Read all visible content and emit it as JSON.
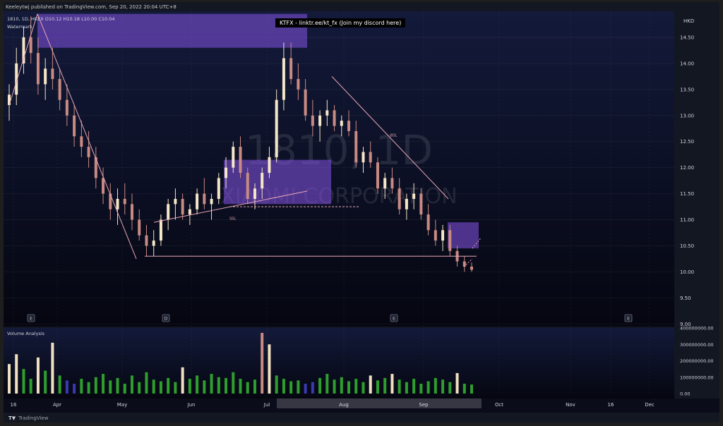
{
  "header": {
    "published": "Keeleytwj published on TradingView.com, Sep 20, 2022 20:04 UTC+8",
    "ohlc": "1810, 1D, HKEX  O10.12  H10.18  L10.00  C10.04",
    "watermark_label": "Watermark",
    "banner": "KTFX - linktr.ee/kt_fx (Join my discord here)",
    "currency": "HKD",
    "volume_title": "Volume Analysis",
    "brand": "TradingView",
    "brand_mark": "T▼"
  },
  "colors": {
    "bg_top": "#131a3a",
    "bg_bottom": "#050610",
    "candle_up": "#f5e6c8",
    "candle_down": "#c98a83",
    "zone": "#7b4fd6",
    "line": "#e8a6b6",
    "vol_green": "#2e9e2e",
    "vol_blue": "#3a3ab0",
    "vol_cream": "#f0e0c0",
    "vol_red": "#c98a83"
  },
  "chart_data": {
    "type": "candlestick",
    "title": "1810, 1D, HKEX",
    "watermark_text": "1810, 1D",
    "watermark_sub": "XIAOMI CORPORATION",
    "ylabel": "HKD",
    "ylim": [
      8.95,
      15.0
    ],
    "price_ticks": [
      "14.50",
      "14.00",
      "13.50",
      "13.00",
      "12.50",
      "12.00",
      "11.50",
      "11.00",
      "10.50",
      "10.00",
      "9.50",
      "9.00"
    ],
    "x_ticks": [
      "16",
      "Apr",
      "May",
      "Jun",
      "Jul",
      "Aug",
      "Sep",
      "Oct",
      "Nov",
      "16",
      "Dec"
    ],
    "volume_ticks": [
      "400000000.00",
      "300000000.00",
      "200000000.00",
      "100000000.00",
      "0.00"
    ],
    "volume_ylim": [
      0,
      400000000
    ],
    "annotation_labels": {
      "ssl_low": "SSL",
      "ssl_high": "SSL",
      "bsl": "BSL"
    },
    "event_markers": [
      "E",
      "D",
      "E",
      "E"
    ],
    "candles": [
      [
        13.2,
        13.6,
        12.9,
        13.4
      ],
      [
        13.4,
        14.3,
        13.2,
        14.0
      ],
      [
        14.0,
        14.7,
        13.8,
        14.5
      ],
      [
        14.5,
        14.9,
        14.0,
        14.2
      ],
      [
        14.2,
        14.5,
        13.4,
        13.6
      ],
      [
        13.6,
        14.1,
        13.3,
        13.9
      ],
      [
        13.9,
        14.3,
        13.5,
        13.7
      ],
      [
        13.7,
        13.9,
        13.1,
        13.3
      ],
      [
        13.3,
        13.6,
        12.8,
        13.0
      ],
      [
        13.0,
        13.2,
        12.4,
        12.6
      ],
      [
        12.6,
        12.9,
        12.2,
        12.4
      ],
      [
        12.4,
        12.7,
        12.0,
        12.2
      ],
      [
        12.2,
        12.4,
        11.6,
        11.8
      ],
      [
        11.8,
        12.0,
        11.3,
        11.5
      ],
      [
        11.5,
        11.7,
        11.0,
        11.2
      ],
      [
        11.2,
        11.6,
        10.9,
        11.4
      ],
      [
        11.4,
        11.7,
        11.1,
        11.3
      ],
      [
        11.3,
        11.5,
        10.8,
        11.0
      ],
      [
        11.0,
        11.2,
        10.6,
        10.7
      ],
      [
        10.7,
        10.9,
        10.3,
        10.5
      ],
      [
        10.5,
        10.8,
        10.3,
        10.6
      ],
      [
        10.6,
        11.1,
        10.5,
        11.0
      ],
      [
        11.0,
        11.4,
        10.8,
        11.3
      ],
      [
        11.3,
        11.6,
        11.0,
        11.4
      ],
      [
        11.4,
        11.5,
        11.0,
        11.1
      ],
      [
        11.1,
        11.3,
        10.9,
        11.2
      ],
      [
        11.2,
        11.6,
        11.1,
        11.5
      ],
      [
        11.5,
        11.8,
        11.2,
        11.3
      ],
      [
        11.3,
        11.5,
        11.0,
        11.4
      ],
      [
        11.4,
        11.9,
        11.3,
        11.8
      ],
      [
        11.8,
        12.2,
        11.6,
        12.0
      ],
      [
        12.0,
        12.5,
        11.9,
        12.4
      ],
      [
        12.4,
        12.6,
        11.8,
        11.9
      ],
      [
        11.9,
        12.0,
        11.3,
        11.4
      ],
      [
        11.4,
        11.7,
        11.2,
        11.6
      ],
      [
        11.6,
        12.0,
        11.4,
        11.9
      ],
      [
        11.9,
        12.4,
        11.8,
        12.2
      ],
      [
        12.2,
        13.5,
        12.1,
        13.3
      ],
      [
        13.3,
        14.4,
        13.1,
        14.1
      ],
      [
        14.1,
        14.4,
        13.6,
        13.7
      ],
      [
        13.7,
        14.0,
        13.3,
        13.5
      ],
      [
        13.5,
        13.7,
        12.9,
        13.0
      ],
      [
        13.0,
        13.3,
        12.6,
        12.8
      ],
      [
        12.8,
        13.1,
        12.5,
        13.0
      ],
      [
        13.0,
        13.3,
        12.8,
        13.1
      ],
      [
        13.1,
        13.2,
        12.7,
        12.8
      ],
      [
        12.8,
        13.0,
        12.6,
        12.9
      ],
      [
        12.9,
        13.1,
        12.6,
        12.7
      ],
      [
        12.7,
        12.9,
        12.0,
        12.1
      ],
      [
        12.1,
        12.4,
        11.9,
        12.3
      ],
      [
        12.3,
        12.5,
        12.0,
        12.1
      ],
      [
        12.1,
        12.2,
        11.5,
        11.6
      ],
      [
        11.6,
        11.9,
        11.4,
        11.8
      ],
      [
        11.8,
        12.0,
        11.5,
        11.6
      ],
      [
        11.6,
        11.8,
        11.1,
        11.2
      ],
      [
        11.2,
        11.5,
        11.0,
        11.4
      ],
      [
        11.4,
        11.7,
        11.2,
        11.5
      ],
      [
        11.5,
        11.6,
        11.0,
        11.1
      ],
      [
        11.1,
        11.3,
        10.7,
        10.8
      ],
      [
        10.8,
        11.0,
        10.5,
        10.6
      ],
      [
        10.6,
        10.9,
        10.4,
        10.8
      ],
      [
        10.8,
        10.9,
        10.3,
        10.4
      ],
      [
        10.4,
        10.5,
        10.1,
        10.2
      ],
      [
        10.2,
        10.3,
        10.0,
        10.1
      ],
      [
        10.1,
        10.18,
        10.0,
        10.04
      ]
    ],
    "volume": [
      [
        180000000,
        "cream"
      ],
      [
        240000000,
        "cream"
      ],
      [
        150000000,
        "green"
      ],
      [
        90000000,
        "green"
      ],
      [
        220000000,
        "cream"
      ],
      [
        140000000,
        "green"
      ],
      [
        310000000,
        "cream"
      ],
      [
        110000000,
        "green"
      ],
      [
        80000000,
        "blue"
      ],
      [
        60000000,
        "blue"
      ],
      [
        90000000,
        "green"
      ],
      [
        70000000,
        "green"
      ],
      [
        100000000,
        "green"
      ],
      [
        120000000,
        "green"
      ],
      [
        80000000,
        "green"
      ],
      [
        95000000,
        "green"
      ],
      [
        60000000,
        "green"
      ],
      [
        110000000,
        "green"
      ],
      [
        70000000,
        "green"
      ],
      [
        130000000,
        "green"
      ],
      [
        85000000,
        "green"
      ],
      [
        75000000,
        "green"
      ],
      [
        95000000,
        "green"
      ],
      [
        70000000,
        "green"
      ],
      [
        160000000,
        "cream"
      ],
      [
        90000000,
        "green"
      ],
      [
        110000000,
        "green"
      ],
      [
        80000000,
        "green"
      ],
      [
        120000000,
        "green"
      ],
      [
        100000000,
        "green"
      ],
      [
        95000000,
        "green"
      ],
      [
        130000000,
        "green"
      ],
      [
        90000000,
        "green"
      ],
      [
        70000000,
        "green"
      ],
      [
        85000000,
        "green"
      ],
      [
        370000000,
        "red"
      ],
      [
        300000000,
        "cream"
      ],
      [
        110000000,
        "green"
      ],
      [
        90000000,
        "green"
      ],
      [
        75000000,
        "green"
      ],
      [
        80000000,
        "green"
      ],
      [
        60000000,
        "blue"
      ],
      [
        70000000,
        "blue"
      ],
      [
        95000000,
        "green"
      ],
      [
        120000000,
        "green"
      ],
      [
        85000000,
        "green"
      ],
      [
        100000000,
        "green"
      ],
      [
        75000000,
        "green"
      ],
      [
        90000000,
        "green"
      ],
      [
        70000000,
        "green"
      ],
      [
        110000000,
        "cream"
      ],
      [
        80000000,
        "green"
      ],
      [
        95000000,
        "green"
      ],
      [
        120000000,
        "cream"
      ],
      [
        85000000,
        "green"
      ],
      [
        70000000,
        "green"
      ],
      [
        90000000,
        "green"
      ],
      [
        60000000,
        "green"
      ],
      [
        75000000,
        "green"
      ],
      [
        95000000,
        "green"
      ],
      [
        85000000,
        "green"
      ],
      [
        70000000,
        "green"
      ],
      [
        125000000,
        "cream"
      ],
      [
        60000000,
        "green"
      ],
      [
        55000000,
        "green"
      ]
    ]
  }
}
